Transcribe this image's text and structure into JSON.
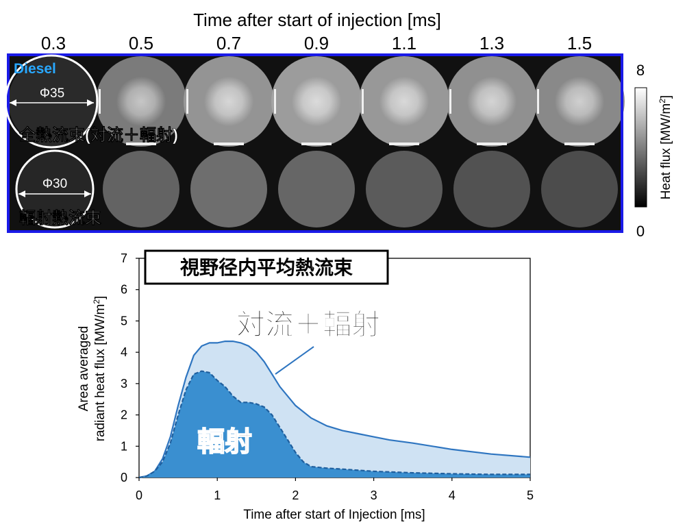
{
  "strip": {
    "title": "Time after start of injection [ms]",
    "times": [
      "0.3",
      "0.5",
      "0.7",
      "0.9",
      "1.1",
      "1.3",
      "1.5"
    ],
    "tag": "Diesel",
    "row1": {
      "label": "全熱流束(対流＋輻射)",
      "diameter": "Φ35",
      "intensity": [
        0.12,
        0.55,
        0.68,
        0.72,
        0.7,
        0.66,
        0.62
      ]
    },
    "row2": {
      "label": "輻射熱流束",
      "diameter": "Φ30",
      "intensity": [
        0.1,
        0.42,
        0.48,
        0.44,
        0.38,
        0.33,
        0.3
      ]
    },
    "colorbar": {
      "max": "8",
      "min": "0",
      "label": "Heat flux [MW/m",
      "label_sup": "2",
      "label_end": "]"
    }
  },
  "chart_data": {
    "type": "area",
    "title": "視野径内平均熱流束",
    "xlabel": "Time after start of Injection [ms]",
    "ylabel_line1": "Area averaged",
    "ylabel_line2": "radiant heat flux [MW/m",
    "ylabel_sup": "2",
    "ylabel_end": "]",
    "xlim": [
      0,
      5
    ],
    "ylim": [
      0,
      7
    ],
    "xticks": [
      "0",
      "1",
      "2",
      "3",
      "4",
      "5"
    ],
    "yticks": [
      "0",
      "1",
      "2",
      "3",
      "4",
      "5",
      "6",
      "7"
    ],
    "series": [
      {
        "name": "対流＋輻射",
        "color": "#2e75c0",
        "fill": "#cfe2f3",
        "x": [
          0,
          0.1,
          0.2,
          0.3,
          0.4,
          0.5,
          0.6,
          0.7,
          0.8,
          0.9,
          1.0,
          1.1,
          1.2,
          1.3,
          1.4,
          1.5,
          1.6,
          1.7,
          1.8,
          2.0,
          2.2,
          2.4,
          2.6,
          2.8,
          3.0,
          3.2,
          3.5,
          4.0,
          4.5,
          5.0
        ],
        "y": [
          0,
          0.05,
          0.2,
          0.6,
          1.3,
          2.3,
          3.2,
          3.9,
          4.2,
          4.3,
          4.3,
          4.35,
          4.35,
          4.3,
          4.2,
          4.0,
          3.7,
          3.3,
          2.9,
          2.3,
          1.9,
          1.65,
          1.5,
          1.4,
          1.3,
          1.2,
          1.1,
          0.9,
          0.75,
          0.65
        ]
      },
      {
        "name": "輻射",
        "color": "#1f5f9e",
        "fill": "#3a8fd0",
        "x": [
          0,
          0.1,
          0.2,
          0.3,
          0.4,
          0.5,
          0.6,
          0.7,
          0.8,
          0.9,
          1.0,
          1.1,
          1.2,
          1.3,
          1.4,
          1.5,
          1.6,
          1.7,
          1.8,
          1.9,
          2.0,
          2.1,
          2.2,
          2.4,
          2.6,
          3.0,
          3.5,
          4.0,
          4.5,
          5.0
        ],
        "y": [
          0,
          0.05,
          0.2,
          0.5,
          1.1,
          2.0,
          2.8,
          3.3,
          3.4,
          3.35,
          3.1,
          2.9,
          2.6,
          2.4,
          2.4,
          2.35,
          2.25,
          2.0,
          1.6,
          1.2,
          0.8,
          0.5,
          0.35,
          0.3,
          0.27,
          0.2,
          0.15,
          0.12,
          0.1,
          0.1
        ]
      }
    ]
  }
}
